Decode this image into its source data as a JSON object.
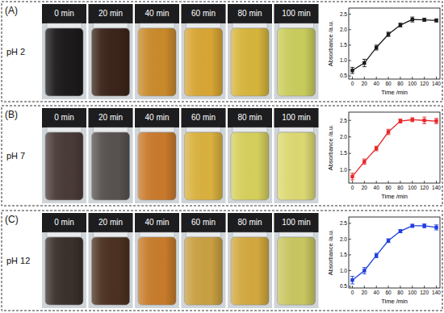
{
  "panels": [
    {
      "label": "(A)",
      "condition": "pH 2",
      "times": [
        "0 min",
        "20 min",
        "40 min",
        "60 min",
        "80 min",
        "100 min"
      ],
      "colors": [
        "#1c1a1a",
        "#3b2419",
        "#c98a2a",
        "#d8a534",
        "#d6b53c",
        "#c9cc5c"
      ]
    },
    {
      "label": "(B)",
      "condition": "pH 7",
      "times": [
        "0 min",
        "20 min",
        "40 min",
        "60 min",
        "80 min",
        "100 min"
      ],
      "colors": [
        "#4a3b38",
        "#57524f",
        "#c9792b",
        "#d9b13e",
        "#d5cf5c",
        "#dcd872"
      ]
    },
    {
      "label": "(C)",
      "condition": "pH 12",
      "times": [
        "0 min",
        "20 min",
        "40 min",
        "60 min",
        "80 min",
        "100 min"
      ],
      "colors": [
        "#3a302c",
        "#4b3121",
        "#c77b2b",
        "#c9a042",
        "#d2a83e",
        "#c8c660"
      ]
    }
  ],
  "chart_data": [
    {
      "type": "line",
      "x_label": "Time /min",
      "y_label": "Absorbance /a.u.",
      "x": [
        0,
        20,
        40,
        60,
        80,
        100,
        120,
        140
      ],
      "values": [
        0.68,
        0.92,
        1.42,
        1.85,
        2.15,
        2.33,
        2.32,
        2.3
      ],
      "errors": [
        0.1,
        0.12,
        0.08,
        0.07,
        0.06,
        0.08,
        0.05,
        0.05
      ],
      "color": "#1a1a1a",
      "marker": "square",
      "line_style": "solid",
      "grid": false,
      "xlim": [
        -6,
        146
      ],
      "xticks": [
        0,
        20,
        40,
        60,
        80,
        100,
        120,
        140
      ],
      "ylim": [
        0.4,
        2.7
      ],
      "yticks": [
        0.5,
        {
          "value": 1,
          "label": "1.0"
        },
        1.5,
        {
          "value": 2,
          "label": "2.0"
        },
        2.5
      ]
    },
    {
      "type": "line",
      "x_label": "Time /min",
      "y_label": "Absorbance /a.u.",
      "x": [
        0,
        20,
        40,
        60,
        80,
        100,
        120,
        140
      ],
      "values": [
        0.8,
        1.25,
        1.65,
        2.15,
        2.48,
        2.52,
        2.5,
        2.48
      ],
      "errors": [
        0.1,
        0.08,
        0.07,
        0.08,
        0.06,
        0.06,
        0.1,
        0.08
      ],
      "color": "#e8262a",
      "marker": "square",
      "line_style": "solid",
      "grid": false,
      "xlim": [
        -6,
        146
      ],
      "xticks": [
        0,
        20,
        40,
        60,
        80,
        100,
        120,
        140
      ],
      "ylim": [
        0.6,
        2.75
      ],
      "yticks": [
        {
          "value": 1,
          "label": "1.0"
        },
        1.5,
        {
          "value": 2,
          "label": "2.0"
        },
        2.5
      ]
    },
    {
      "type": "line",
      "x_label": "Time /min",
      "y_label": "Absorbance /a.u.",
      "x": [
        0,
        20,
        40,
        60,
        80,
        100,
        120,
        140
      ],
      "values": [
        0.7,
        1.0,
        1.48,
        1.95,
        2.25,
        2.42,
        2.42,
        2.37
      ],
      "errors": [
        0.12,
        0.1,
        0.07,
        0.06,
        0.05,
        0.05,
        0.06,
        0.08
      ],
      "color": "#1f3fe0",
      "marker": "square",
      "line_style": "solid",
      "grid": false,
      "xlim": [
        -6,
        146
      ],
      "xticks": [
        0,
        20,
        40,
        60,
        80,
        100,
        120,
        140
      ],
      "ylim": [
        0.45,
        2.7
      ],
      "yticks": [
        0.5,
        {
          "value": 1,
          "label": "1.0"
        },
        1.5,
        {
          "value": 2,
          "label": "2.0"
        },
        2.5
      ]
    }
  ]
}
